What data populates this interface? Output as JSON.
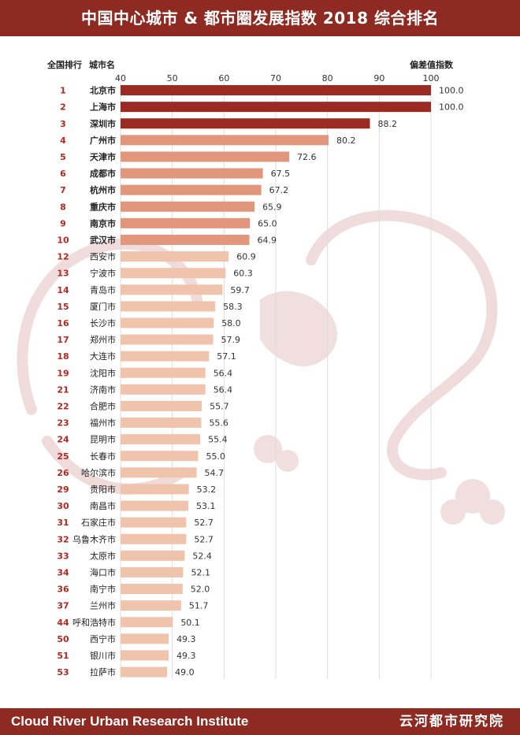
{
  "title": "中国中心城市 & 都市圈发展指数 2018 综合排名",
  "header": {
    "rank_label": "全国排行",
    "city_label": "城市名",
    "value_label": "偏差值指数"
  },
  "footer": {
    "english": "Cloud River Urban Research Institute",
    "chinese": "云河都市研究院"
  },
  "colors": {
    "brand": "#8e2a22",
    "top": "#9b2a22",
    "mid": "#e2977c",
    "low": "#f0c3ad",
    "rank": "#b5291f",
    "watermark": "#e4bfbf"
  },
  "watermark_icon": "dragon-icon",
  "chart_data": {
    "type": "bar",
    "orientation": "horizontal",
    "xlim": [
      40,
      100
    ],
    "xticks": [
      40,
      50,
      60,
      70,
      80,
      90,
      100
    ],
    "grid": true,
    "ranks": [
      1,
      2,
      3,
      4,
      5,
      6,
      7,
      8,
      9,
      10,
      12,
      13,
      14,
      15,
      16,
      17,
      18,
      19,
      21,
      22,
      23,
      24,
      25,
      26,
      29,
      30,
      31,
      32,
      33,
      34,
      36,
      37,
      44,
      50,
      51,
      53
    ],
    "categories": [
      "北京市",
      "上海市",
      "深圳市",
      "广州市",
      "天津市",
      "成都市",
      "杭州市",
      "重庆市",
      "南京市",
      "武汉市",
      "西安市",
      "宁波市",
      "青岛市",
      "厦门市",
      "长沙市",
      "郑州市",
      "大连市",
      "沈阳市",
      "济南市",
      "合肥市",
      "福州市",
      "昆明市",
      "长春市",
      "哈尔滨市",
      "贵阳市",
      "南昌市",
      "石家庄市",
      "乌鲁木齐市",
      "太原市",
      "海口市",
      "南宁市",
      "兰州市",
      "呼和浩特市",
      "西宁市",
      "银川市",
      "拉萨市"
    ],
    "values": [
      100.0,
      100.0,
      88.2,
      80.2,
      72.6,
      67.5,
      67.2,
      65.9,
      65.0,
      64.9,
      60.9,
      60.3,
      59.7,
      58.3,
      58.0,
      57.9,
      57.1,
      56.4,
      56.4,
      55.7,
      55.6,
      55.4,
      55.0,
      54.7,
      53.2,
      53.1,
      52.7,
      52.7,
      52.4,
      52.1,
      52.0,
      51.7,
      50.1,
      49.3,
      49.3,
      49.0
    ],
    "value_labels": [
      "100.0",
      "100.0",
      "88.2",
      "80.2",
      "72.6",
      "67.5",
      "67.2",
      "65.9",
      "65.0",
      "64.9",
      "60.9",
      "60.3",
      "59.7",
      "58.3",
      "58.0",
      "57.9",
      "57.1",
      "56.4",
      "56.4",
      "55.7",
      "55.6",
      "55.4",
      "55.0",
      "54.7",
      "53.2",
      "53.1",
      "52.7",
      "52.7",
      "52.4",
      "52.1",
      "52.0",
      "51.7",
      "50.1",
      "49.3",
      "49.3",
      "49.0"
    ]
  }
}
